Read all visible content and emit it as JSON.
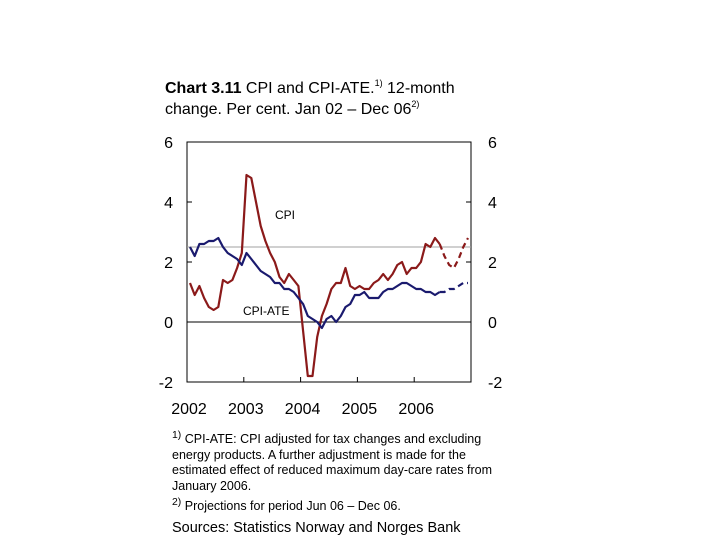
{
  "title": {
    "bold": "Chart 3.11",
    "line1": " CPI and CPI-ATE.",
    "sup1": "1)",
    "line1b": " 12-month",
    "line2": "change. Per cent. Jan 02 – Dec 06",
    "sup2": "2)"
  },
  "footnotes": {
    "n1_marker": "1)",
    "n1_text": " CPI-ATE: CPI adjusted for tax changes and excluding energy products. A further adjustment is made for the estimated effect of reduced maximum day-care rates from January 2006.",
    "n2_marker": "2)",
    "n2_text": " Projections for period Jun 06 – Dec 06."
  },
  "source": "Sources: Statistics Norway and Norges Bank",
  "colors": {
    "cpi": "#8B1A1A",
    "cpi_ate": "#1A1A6E",
    "reference": "#A0A0A0"
  },
  "chart_data": {
    "type": "line",
    "ylim": [
      -2,
      6
    ],
    "yticks": [
      "6",
      "4",
      "2",
      "0",
      "-2"
    ],
    "ytick_values": [
      6,
      4,
      2,
      0,
      -2
    ],
    "x_range": [
      "Jan 02",
      "Dec 06"
    ],
    "xticks": [
      "2002",
      "2003",
      "2004",
      "2005",
      "2006"
    ],
    "grid": false,
    "reference_lines": [
      2.5,
      0
    ],
    "series": [
      {
        "name": "CPI",
        "label": "CPI",
        "values": [
          1.3,
          0.9,
          1.2,
          0.8,
          0.5,
          0.4,
          0.5,
          1.4,
          1.3,
          1.4,
          1.8,
          2.3,
          4.9,
          4.8,
          4.0,
          3.2,
          2.7,
          2.3,
          2.0,
          1.5,
          1.3,
          1.6,
          1.4,
          1.2,
          -0.3,
          -1.8,
          -1.8,
          -0.5,
          0.2,
          0.6,
          1.1,
          1.3,
          1.3,
          1.8,
          1.2,
          1.1,
          1.2,
          1.1,
          1.1,
          1.3,
          1.4,
          1.6,
          1.4,
          1.6,
          1.9,
          2.0,
          1.6,
          1.8,
          1.8,
          2.0,
          2.6,
          2.5,
          2.8,
          2.6
        ],
        "projection": [
          2.2,
          1.9,
          1.8,
          2.1,
          2.5,
          2.8
        ]
      },
      {
        "name": "CPI-ATE",
        "label": "CPI-ATE",
        "values": [
          2.5,
          2.2,
          2.6,
          2.6,
          2.7,
          2.7,
          2.8,
          2.5,
          2.3,
          2.2,
          2.1,
          1.9,
          2.3,
          2.1,
          1.9,
          1.7,
          1.6,
          1.5,
          1.3,
          1.3,
          1.1,
          1.1,
          1.0,
          0.8,
          0.6,
          0.2,
          0.1,
          0.0,
          -0.2,
          0.1,
          0.2,
          0.0,
          0.2,
          0.5,
          0.6,
          0.9,
          0.9,
          1.0,
          0.8,
          0.8,
          0.8,
          1.0,
          1.1,
          1.1,
          1.2,
          1.3,
          1.3,
          1.2,
          1.1,
          1.1,
          1.0,
          1.0,
          0.9,
          1.0
        ],
        "projection": [
          1.0,
          1.1,
          1.1,
          1.2,
          1.3,
          1.3
        ]
      }
    ]
  }
}
